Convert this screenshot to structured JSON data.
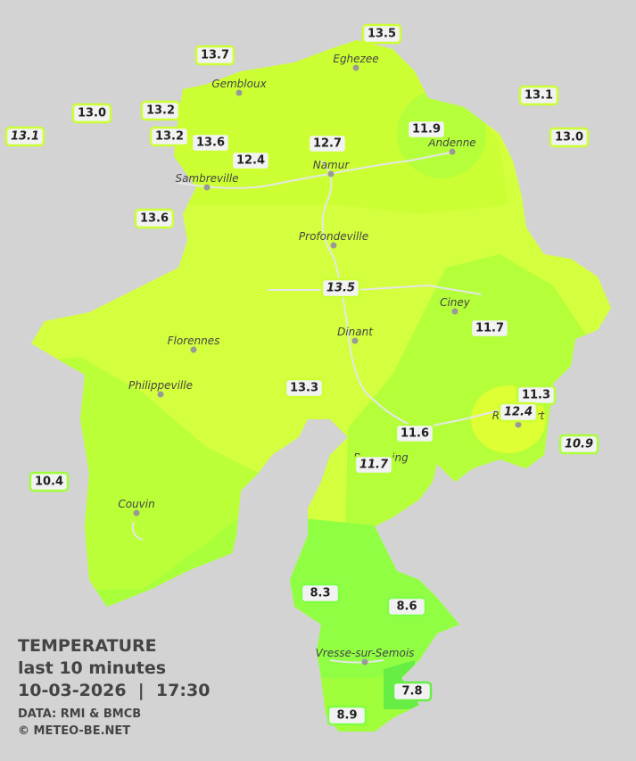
{
  "map": {
    "stations": [
      "13.5",
      "13.7",
      "13.0",
      "13.2",
      "13.1",
      "13.1",
      "13.2",
      "13.6",
      "12.7",
      "11.9",
      "13.0",
      "12.4",
      "13.6",
      "13.5",
      "11.7",
      "13.3",
      "11.3",
      "12.4",
      "11.6",
      "10.9",
      "11.7",
      "10.4",
      "8.3",
      "8.6",
      "7.8",
      "8.9"
    ],
    "towns": [
      "Eghezee",
      "Gembloux",
      "Andenne",
      "Namur",
      "Sambreville",
      "Profondeville",
      "Ciney",
      "Dinant",
      "Florennes",
      "Philippeville",
      "Rochefort",
      "Beauraing",
      "Couvin",
      "Vresse-sur-Semois"
    ]
  },
  "legend": {
    "title": "TEMPERATURE",
    "subtitle": "last 10 minutes",
    "datetime": "10-03-2026  |  17:30",
    "source": "DATA: RMI & BMCB",
    "copyright": "© METEO-BE.NET"
  }
}
